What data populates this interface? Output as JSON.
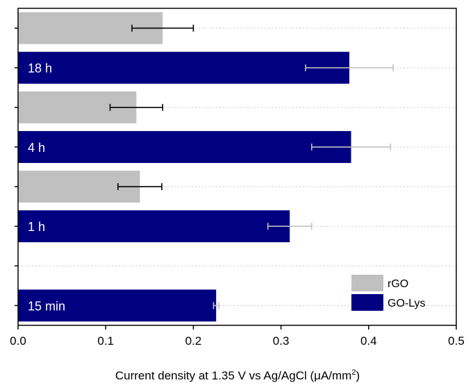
{
  "chart_data": {
    "type": "bar",
    "orientation": "horizontal",
    "categories": [
      "18 h",
      "4 h",
      "1 h",
      "15 min"
    ],
    "series": [
      {
        "name": "rGO",
        "color": "#c0c0c0",
        "values": [
          0.165,
          0.135,
          0.139,
          null
        ],
        "errors": [
          0.035,
          0.03,
          0.025,
          null
        ],
        "error_color": "#000000"
      },
      {
        "name": "GO-Lys",
        "color": "#000080",
        "values": [
          0.378,
          0.38,
          0.31,
          0.226
        ],
        "errors": [
          0.05,
          0.045,
          0.025,
          0.003
        ],
        "error_color": "#c0c0c0"
      }
    ],
    "xlim": [
      0.0,
      0.5
    ],
    "xticks": [
      "0.0",
      "0.1",
      "0.2",
      "0.3",
      "0.4",
      "0.5"
    ],
    "xlabel": "Current density at 1.35 V vs Ag/AgCl (μA/mm",
    "xlabel_sup": "2",
    "xlabel_end": ")",
    "title": "",
    "ylabel": "",
    "grid": "horizontal dotted",
    "legend": "bottom-right",
    "label_color": "#ffffff"
  }
}
